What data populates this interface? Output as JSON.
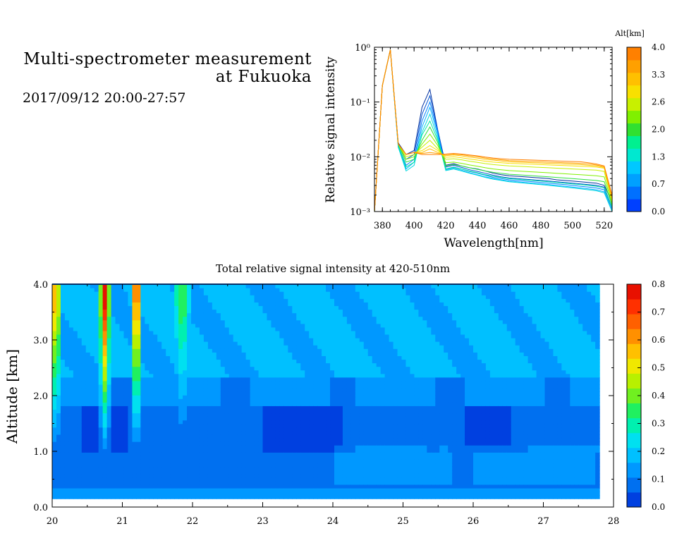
{
  "header": {
    "title_line1": "Multi-spectrometer measurement",
    "title_line2": "at Fukuoka",
    "datetime": "2017/09/12 20:00-27:57"
  },
  "chart_data": [
    {
      "type": "line",
      "ylabel": "Relative signal intensity",
      "xlabel": "Wavelength[nm]",
      "y_scale": "log",
      "ylim": [
        0.001,
        1
      ],
      "xlim": [
        375,
        525
      ],
      "x_ticks": [
        "380",
        "400",
        "420",
        "440",
        "460",
        "480",
        "500",
        "520"
      ],
      "y_ticks": [
        "10⁻³",
        "10⁻²",
        "10⁻¹",
        "10⁰"
      ],
      "colorbar": {
        "label": "Alt[km]",
        "tick_labels": [
          "4.0",
          "3.3",
          "2.6",
          "2.0",
          "1.3",
          "0.7",
          "0.0"
        ],
        "colors": [
          "#0040ff",
          "#0070ff",
          "#00a0ff",
          "#00c8ff",
          "#00e8d0",
          "#00f090",
          "#30e030",
          "#80f000",
          "#c8f000",
          "#f8e000",
          "#ffc000",
          "#ffa000",
          "#ff8000"
        ]
      },
      "x": [
        375,
        380,
        385,
        390,
        395,
        400,
        405,
        410,
        415,
        420,
        425,
        430,
        435,
        440,
        445,
        450,
        455,
        460,
        465,
        470,
        475,
        480,
        485,
        490,
        495,
        500,
        505,
        510,
        515,
        520,
        525
      ],
      "series": [
        {
          "altitude": 0.0,
          "color": "#0030a0",
          "values": [
            0.001,
            0.2,
            0.9,
            0.018,
            0.011,
            0.013,
            0.08,
            0.17,
            0.03,
            0.007,
            0.0075,
            0.0068,
            0.0063,
            0.006,
            0.0055,
            0.005,
            0.0047,
            0.0045,
            0.0044,
            0.0043,
            0.0042,
            0.0041,
            0.004,
            0.0038,
            0.0037,
            0.0036,
            0.0035,
            0.0034,
            0.0033,
            0.003,
            0.0015
          ]
        },
        {
          "altitude": 0.3,
          "color": "#0050d0",
          "values": [
            0.001,
            0.2,
            0.9,
            0.017,
            0.009,
            0.011,
            0.06,
            0.13,
            0.03,
            0.0065,
            0.007,
            0.0064,
            0.0058,
            0.0054,
            0.005,
            0.0046,
            0.0043,
            0.0041,
            0.004,
            0.0039,
            0.0038,
            0.0037,
            0.0036,
            0.0035,
            0.0034,
            0.0033,
            0.0032,
            0.0031,
            0.003,
            0.0028,
            0.0012
          ]
        },
        {
          "altitude": 0.7,
          "color": "#0080ff",
          "values": [
            0.001,
            0.2,
            0.9,
            0.016,
            0.007,
            0.009,
            0.045,
            0.1,
            0.028,
            0.006,
            0.0065,
            0.006,
            0.0054,
            0.005,
            0.0046,
            0.0042,
            0.004,
            0.0038,
            0.0037,
            0.0036,
            0.0035,
            0.0034,
            0.0033,
            0.0032,
            0.0031,
            0.003,
            0.0029,
            0.0028,
            0.0027,
            0.0025,
            0.0011
          ]
        },
        {
          "altitude": 1.0,
          "color": "#00b0ff",
          "values": [
            0.001,
            0.2,
            0.9,
            0.015,
            0.006,
            0.008,
            0.035,
            0.08,
            0.025,
            0.0058,
            0.0062,
            0.0057,
            0.0051,
            0.0047,
            0.0043,
            0.004,
            0.0038,
            0.0036,
            0.0035,
            0.0034,
            0.0033,
            0.0032,
            0.0031,
            0.003,
            0.0029,
            0.0028,
            0.0027,
            0.0026,
            0.0025,
            0.0023,
            0.001
          ]
        },
        {
          "altitude": 1.3,
          "color": "#00d8e0",
          "values": [
            0.001,
            0.2,
            0.9,
            0.015,
            0.0055,
            0.007,
            0.028,
            0.06,
            0.022,
            0.0056,
            0.006,
            0.0055,
            0.005,
            0.0046,
            0.0042,
            0.0039,
            0.0037,
            0.0035,
            0.0034,
            0.0033,
            0.0032,
            0.0031,
            0.003,
            0.0029,
            0.0028,
            0.0027,
            0.0026,
            0.0025,
            0.0024,
            0.0022,
            0.001
          ]
        },
        {
          "altitude": 1.6,
          "color": "#00e8a0",
          "values": [
            0.001,
            0.2,
            0.9,
            0.016,
            0.0065,
            0.008,
            0.025,
            0.045,
            0.02,
            0.006,
            0.0064,
            0.006,
            0.0055,
            0.0051,
            0.0047,
            0.0044,
            0.0042,
            0.004,
            0.0039,
            0.0038,
            0.0037,
            0.0036,
            0.0035,
            0.0034,
            0.0033,
            0.0032,
            0.0031,
            0.003,
            0.0029,
            0.0027,
            0.0012
          ]
        },
        {
          "altitude": 2.0,
          "color": "#30e040",
          "values": [
            0.001,
            0.2,
            0.9,
            0.017,
            0.008,
            0.009,
            0.02,
            0.035,
            0.018,
            0.0068,
            0.0072,
            0.0068,
            0.0063,
            0.0059,
            0.0055,
            0.0052,
            0.005,
            0.0048,
            0.0047,
            0.0046,
            0.0045,
            0.0044,
            0.0043,
            0.0042,
            0.0041,
            0.004,
            0.0039,
            0.0038,
            0.0037,
            0.0035,
            0.0013
          ]
        },
        {
          "altitude": 2.3,
          "color": "#80f000",
          "values": [
            0.001,
            0.2,
            0.9,
            0.017,
            0.009,
            0.01,
            0.017,
            0.026,
            0.016,
            0.0078,
            0.008,
            0.0076,
            0.0071,
            0.0067,
            0.0063,
            0.006,
            0.0058,
            0.0056,
            0.0055,
            0.0054,
            0.0053,
            0.0052,
            0.0051,
            0.005,
            0.0049,
            0.0048,
            0.0047,
            0.0046,
            0.0045,
            0.0043,
            0.0014
          ]
        },
        {
          "altitude": 2.6,
          "color": "#c8f000",
          "values": [
            0.001,
            0.2,
            0.9,
            0.017,
            0.01,
            0.011,
            0.015,
            0.02,
            0.014,
            0.009,
            0.0092,
            0.0088,
            0.0083,
            0.0079,
            0.0075,
            0.0072,
            0.007,
            0.0068,
            0.0067,
            0.0066,
            0.0065,
            0.0064,
            0.0063,
            0.0062,
            0.0061,
            0.006,
            0.0059,
            0.0058,
            0.0057,
            0.0054,
            0.0015
          ]
        },
        {
          "altitude": 3.0,
          "color": "#f8e000",
          "values": [
            0.001,
            0.2,
            0.9,
            0.017,
            0.011,
            0.012,
            0.013,
            0.016,
            0.013,
            0.0098,
            0.01,
            0.0096,
            0.0091,
            0.0087,
            0.0083,
            0.008,
            0.0078,
            0.0076,
            0.0075,
            0.0074,
            0.0073,
            0.0072,
            0.0071,
            0.007,
            0.0069,
            0.0068,
            0.0067,
            0.0066,
            0.0065,
            0.0062,
            0.0016
          ]
        },
        {
          "altitude": 3.3,
          "color": "#ffc000",
          "values": [
            0.001,
            0.2,
            0.9,
            0.017,
            0.011,
            0.012,
            0.012,
            0.014,
            0.012,
            0.0105,
            0.0108,
            0.0104,
            0.0099,
            0.0095,
            0.009,
            0.0087,
            0.0084,
            0.0081,
            0.008,
            0.0079,
            0.0078,
            0.0077,
            0.0076,
            0.0075,
            0.0074,
            0.0073,
            0.0072,
            0.007,
            0.0068,
            0.0064,
            0.0017
          ]
        },
        {
          "altitude": 3.6,
          "color": "#ffa000",
          "values": [
            0.001,
            0.2,
            0.9,
            0.017,
            0.011,
            0.012,
            0.0115,
            0.012,
            0.0115,
            0.011,
            0.0112,
            0.0109,
            0.0104,
            0.01,
            0.0095,
            0.0091,
            0.0088,
            0.0085,
            0.0084,
            0.0083,
            0.0082,
            0.0081,
            0.008,
            0.0079,
            0.0078,
            0.0077,
            0.0076,
            0.0074,
            0.0071,
            0.0066,
            0.0018
          ]
        },
        {
          "altitude": 4.0,
          "color": "#ff8000",
          "values": [
            0.001,
            0.2,
            0.9,
            0.017,
            0.011,
            0.012,
            0.011,
            0.011,
            0.011,
            0.0112,
            0.0115,
            0.0112,
            0.0108,
            0.0104,
            0.0099,
            0.0095,
            0.0092,
            0.009,
            0.0089,
            0.0088,
            0.0087,
            0.0086,
            0.0085,
            0.0084,
            0.0083,
            0.0082,
            0.0081,
            0.0078,
            0.0074,
            0.0068,
            0.002
          ]
        }
      ]
    },
    {
      "type": "heatmap",
      "title": "Total relative signal intensity at 420-510nm",
      "ylabel": "Altitude [km]",
      "xlim": [
        20,
        28
      ],
      "ylim": [
        0,
        4
      ],
      "x_ticks": [
        "20",
        "21",
        "22",
        "23",
        "24",
        "25",
        "26",
        "27",
        "28"
      ],
      "y_ticks": [
        "0.0",
        "1.0",
        "2.0",
        "3.0",
        "4.0"
      ],
      "colorbar": {
        "tick_labels": [
          "0.8",
          "0.7",
          "0.6",
          "0.5",
          "0.4",
          "0.3",
          "0.2",
          "0.1",
          "0.0"
        ],
        "range": [
          0,
          0.8
        ],
        "colors": [
          "#0040e0",
          "#0070f0",
          "#0098ff",
          "#00c0ff",
          "#00e0f0",
          "#00f0b0",
          "#20f060",
          "#70f020",
          "#b8f000",
          "#f0e800",
          "#ffc000",
          "#ff9000",
          "#ff6000",
          "#ff3000",
          "#e81000"
        ]
      },
      "features": {
        "data_time_range": [
          20.0,
          27.8
        ],
        "data_alt_range": [
          0.15,
          4.0
        ],
        "peak_times": [
          20.05,
          20.75,
          21.2,
          21.85
        ],
        "peak_values": [
          0.62,
          0.78,
          0.7,
          0.38
        ]
      }
    }
  ]
}
